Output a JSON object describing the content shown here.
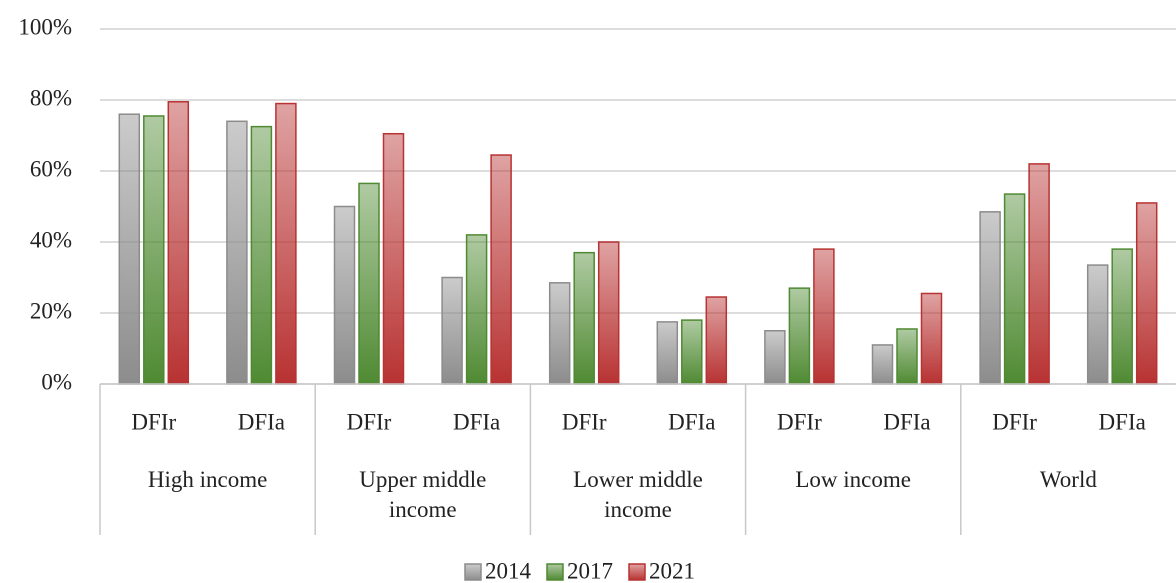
{
  "chart_data": {
    "type": "bar",
    "categories": [
      "DFIr",
      "DFIa",
      "DFIr",
      "DFIa",
      "DFIr",
      "DFIa",
      "DFIr",
      "DFIa",
      "DFIr",
      "DFIa"
    ],
    "groups": [
      "High income",
      "Upper middle income",
      "Lower middle income",
      "Low income",
      "World"
    ],
    "series": [
      {
        "name": "2014",
        "color": "#8c8c8c",
        "values": [
          76,
          74,
          50,
          30,
          28.5,
          17.5,
          15,
          11,
          48.5,
          33.5
        ]
      },
      {
        "name": "2017",
        "color": "#4f8a32",
        "values": [
          75.5,
          72.5,
          56.5,
          42,
          37,
          18,
          27,
          15.5,
          53.5,
          38
        ]
      },
      {
        "name": "2021",
        "color": "#b83232",
        "values": [
          79.5,
          79,
          70.5,
          64.5,
          40,
          24.5,
          38,
          25.5,
          62,
          51
        ]
      }
    ],
    "ylim": [
      0,
      100
    ],
    "yticks": [
      {
        "value": 0,
        "label": "0%"
      },
      {
        "value": 20,
        "label": "20%"
      },
      {
        "value": 40,
        "label": "40%"
      },
      {
        "value": 60,
        "label": "60%"
      },
      {
        "value": 80,
        "label": "80%"
      },
      {
        "value": 100,
        "label": "100%"
      }
    ],
    "grid": true,
    "legend": "bottom"
  }
}
